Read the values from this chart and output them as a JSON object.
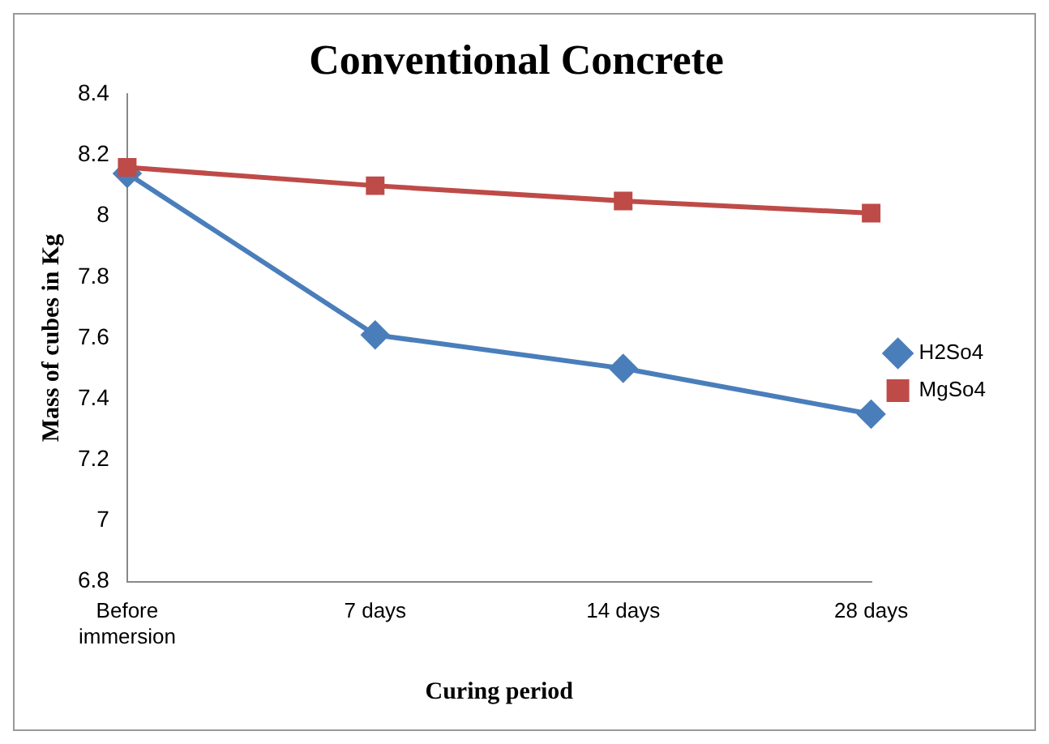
{
  "chart_data": {
    "type": "line",
    "title": "Conventional Concrete",
    "xlabel": "Curing period",
    "ylabel": "Mass of cubes in Kg",
    "categories": [
      "Before immersion",
      "7 days",
      "14 days",
      "28 days"
    ],
    "series": [
      {
        "name": "H2So4",
        "color": "#4a7ebb",
        "marker": "diamond",
        "values": [
          8.14,
          7.61,
          7.5,
          7.35
        ]
      },
      {
        "name": "MgSo4",
        "color": "#be4b48",
        "marker": "square",
        "values": [
          8.16,
          8.1,
          8.05,
          8.01
        ]
      }
    ],
    "ylim": [
      6.8,
      8.4
    ],
    "yticks": [
      6.8,
      7,
      7.2,
      7.4,
      7.6,
      7.8,
      8,
      8.2,
      8.4
    ],
    "grid": false,
    "legend": "right"
  }
}
